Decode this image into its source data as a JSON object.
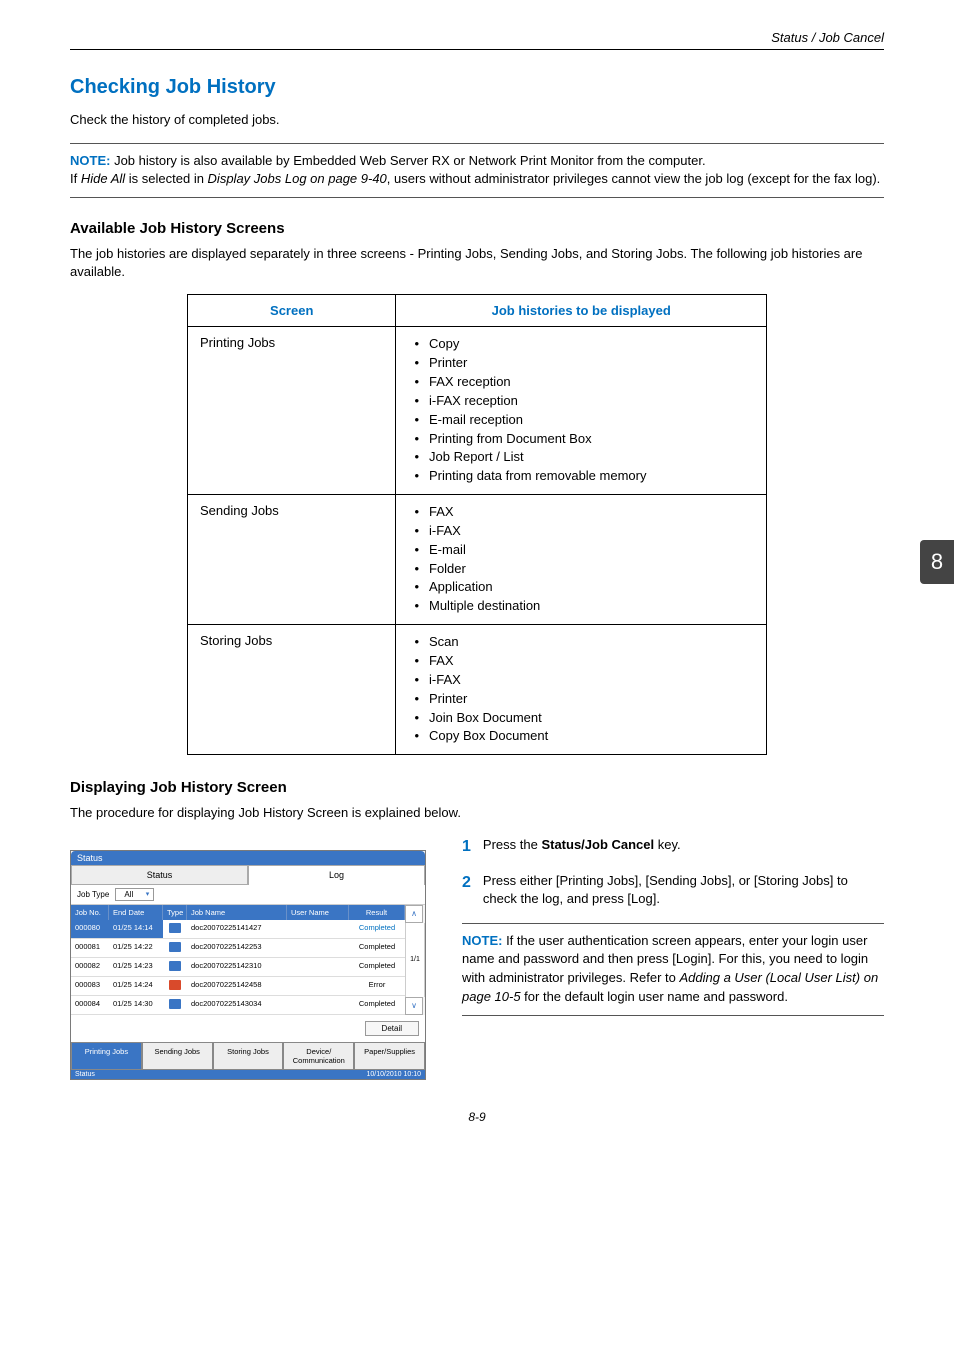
{
  "header": {
    "right": "Status / Job Cancel"
  },
  "title": "Checking Job History",
  "intro": "Check the history of completed jobs.",
  "note1": {
    "label": "NOTE:",
    "line1": " Job history is also available by Embedded Web Server RX or Network Print Monitor from the computer.",
    "line2a": "If ",
    "line2b": "Hide All",
    "line2c": " is selected in ",
    "line2d": "Display Jobs Log on page 9-40",
    "line2e": ", users without administrator privileges cannot view the job log (except for the fax log)."
  },
  "avail": {
    "heading": "Available Job History Screens",
    "para": "The job histories are displayed separately in three screens - Printing Jobs, Sending Jobs, and Storing Jobs. The following job histories are available.",
    "th1": "Screen",
    "th2": "Job histories to be displayed",
    "rows": [
      {
        "screen": "Printing Jobs",
        "items": [
          "Copy",
          "Printer",
          "FAX reception",
          "i-FAX reception",
          "E-mail reception",
          "Printing from Document Box",
          "Job Report / List",
          "Printing data from removable memory"
        ]
      },
      {
        "screen": "Sending Jobs",
        "items": [
          "FAX",
          "i-FAX",
          "E-mail",
          "Folder",
          "Application",
          "Multiple destination"
        ]
      },
      {
        "screen": "Storing Jobs",
        "items": [
          "Scan",
          "FAX",
          "i-FAX",
          "Printer",
          "Join Box Document",
          "Copy Box Document"
        ]
      }
    ]
  },
  "disp": {
    "heading": "Displaying Job History Screen",
    "para": "The procedure for displaying Job History Screen is explained below.",
    "step1_a": "Press the ",
    "step1_b": "Status/Job Cancel",
    "step1_c": " key.",
    "step2": "Press either [Printing Jobs], [Sending Jobs], or [Storing Jobs] to check the log, and press [Log].",
    "num1": "1",
    "num2": "2"
  },
  "note2": {
    "label": "NOTE:",
    "t1": " If the user authentication screen appears, enter your login user name and password and then press [Login]. For this, you need to login with administrator privileges. Refer to ",
    "t2": "Adding a User (Local User List) on page 10-5",
    "t3": " for the default login user name and password."
  },
  "app": {
    "title": "Status",
    "tabs": {
      "status": "Status",
      "log": "Log"
    },
    "jobtype_label": "Job Type",
    "jobtype_value": "All",
    "head": {
      "no": "Job No.",
      "date": "End Date",
      "type": "Type",
      "name": "Job Name",
      "user": "User Name",
      "result": "Result"
    },
    "rows": [
      {
        "no": "000080",
        "date": "01/25 14:14",
        "name": "doc20070225141427",
        "res": "Completed",
        "sel": true,
        "err": false
      },
      {
        "no": "000081",
        "date": "01/25 14:22",
        "name": "doc20070225142253",
        "res": "Completed",
        "sel": false,
        "err": false
      },
      {
        "no": "000082",
        "date": "01/25 14:23",
        "name": "doc20070225142310",
        "res": "Completed",
        "sel": false,
        "err": false
      },
      {
        "no": "000083",
        "date": "01/25 14:24",
        "name": "doc20070225142458",
        "res": "Error",
        "sel": false,
        "err": true
      },
      {
        "no": "000084",
        "date": "01/25 14:30",
        "name": "doc20070225143034",
        "res": "Completed",
        "sel": false,
        "err": false
      }
    ],
    "pager": "1/1",
    "detail": "Detail",
    "bottom": {
      "printing": "Printing Jobs",
      "sending": "Sending Jobs",
      "storing": "Storing Jobs",
      "device": "Device/\nCommunication",
      "paper": "Paper/Supplies"
    },
    "footer_left": "Status",
    "footer_right": "10/10/2010 10:10"
  },
  "sidetab": "8",
  "pagenum": "8-9"
}
